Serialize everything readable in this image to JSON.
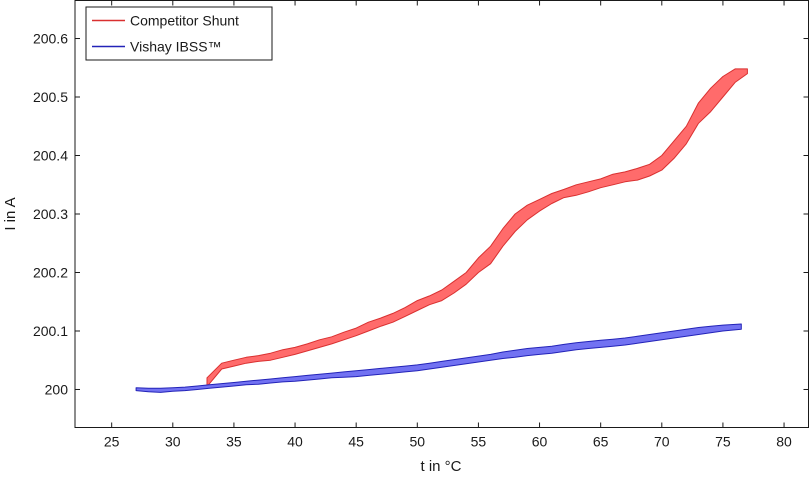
{
  "chart_data": {
    "type": "area",
    "xlabel": "t in °C",
    "ylabel": "I in A",
    "xlim": [
      22,
      82
    ],
    "ylim": [
      199.935,
      200.665
    ],
    "x_ticks": [
      25,
      30,
      35,
      40,
      45,
      50,
      55,
      60,
      65,
      70,
      75,
      80
    ],
    "y_ticks": [
      {
        "value": 200.0,
        "label": "200"
      },
      {
        "value": 200.1,
        "label": "200.1"
      },
      {
        "value": 200.2,
        "label": "200.2"
      },
      {
        "value": 200.3,
        "label": "200.3"
      },
      {
        "value": 200.4,
        "label": "200.4"
      },
      {
        "value": 200.5,
        "label": "200.5"
      },
      {
        "value": 200.6,
        "label": "200.6"
      }
    ],
    "grid": false,
    "legend_position": "top-left",
    "series": [
      {
        "name": "Competitor Shunt",
        "color": "#ff6b6b",
        "edge_color": "#d93030",
        "x": [
          32.8,
          34,
          35,
          36,
          37,
          38,
          39,
          40,
          41,
          42,
          43,
          44,
          45,
          46,
          47,
          48,
          49,
          50,
          51,
          52,
          53,
          54,
          55,
          56,
          57,
          58,
          59,
          60,
          61,
          62,
          63,
          64,
          65,
          66,
          67,
          68,
          69,
          70,
          71,
          72,
          73,
          74,
          75,
          76,
          77
        ],
        "lower": [
          200.005,
          200.035,
          200.04,
          200.045,
          200.048,
          200.05,
          200.055,
          200.06,
          200.066,
          200.072,
          200.078,
          200.085,
          200.092,
          200.1,
          200.108,
          200.115,
          200.125,
          200.135,
          200.145,
          200.152,
          200.165,
          200.18,
          200.2,
          200.215,
          200.245,
          200.27,
          200.29,
          200.305,
          200.318,
          200.328,
          200.332,
          200.338,
          200.345,
          200.35,
          200.355,
          200.358,
          200.365,
          200.375,
          200.395,
          200.42,
          200.455,
          200.475,
          200.5,
          200.525,
          200.54
        ],
        "upper": [
          200.02,
          200.045,
          200.05,
          200.055,
          200.058,
          200.062,
          200.068,
          200.072,
          200.078,
          200.085,
          200.09,
          200.098,
          200.105,
          200.115,
          200.122,
          200.13,
          200.14,
          200.152,
          200.16,
          200.17,
          200.185,
          200.2,
          200.225,
          200.245,
          200.275,
          200.3,
          200.315,
          200.325,
          200.335,
          200.342,
          200.35,
          200.355,
          200.36,
          200.368,
          200.372,
          200.378,
          200.385,
          200.4,
          200.425,
          200.45,
          200.49,
          200.515,
          200.535,
          200.548,
          200.548
        ]
      },
      {
        "name": "Vishay IBSS™",
        "color": "#7272f2",
        "edge_color": "#2323b8",
        "x": [
          27,
          28,
          29,
          30,
          31,
          32,
          33,
          34,
          35,
          36,
          37,
          38,
          39,
          40,
          41,
          42,
          43,
          44,
          45,
          46,
          47,
          48,
          49,
          50,
          51,
          52,
          53,
          54,
          55,
          56,
          57,
          58,
          59,
          60,
          61,
          62,
          63,
          64,
          65,
          66,
          67,
          68,
          69,
          70,
          71,
          72,
          73,
          74,
          75,
          76.5
        ],
        "lower": [
          199.998,
          199.996,
          199.995,
          199.997,
          199.998,
          200.0,
          200.002,
          200.004,
          200.006,
          200.008,
          200.009,
          200.011,
          200.013,
          200.014,
          200.016,
          200.018,
          200.02,
          200.021,
          200.022,
          200.024,
          200.026,
          200.028,
          200.03,
          200.032,
          200.035,
          200.038,
          200.041,
          200.044,
          200.047,
          200.05,
          200.053,
          200.055,
          200.058,
          200.06,
          200.062,
          200.065,
          200.068,
          200.07,
          200.072,
          200.074,
          200.076,
          200.079,
          200.082,
          200.085,
          200.088,
          200.091,
          200.094,
          200.097,
          200.1,
          200.103
        ],
        "upper": [
          200.003,
          200.002,
          200.002,
          200.003,
          200.004,
          200.006,
          200.008,
          200.01,
          200.012,
          200.014,
          200.016,
          200.018,
          200.02,
          200.022,
          200.024,
          200.026,
          200.028,
          200.03,
          200.032,
          200.034,
          200.036,
          200.038,
          200.04,
          200.042,
          200.045,
          200.048,
          200.051,
          200.054,
          200.057,
          200.06,
          200.064,
          200.067,
          200.07,
          200.072,
          200.074,
          200.077,
          200.08,
          200.082,
          200.084,
          200.086,
          200.088,
          200.091,
          200.094,
          200.097,
          200.1,
          200.103,
          200.106,
          200.108,
          200.11,
          200.112
        ]
      }
    ]
  }
}
